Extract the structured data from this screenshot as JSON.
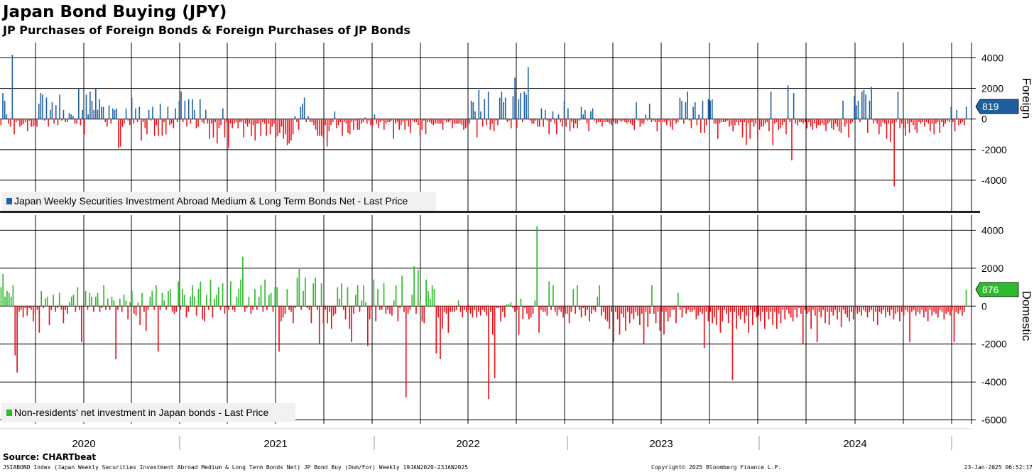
{
  "title": "Japan Bond Buying (JPY)",
  "subtitle": "JP Purchases of Foreign Bonds & Foreign Purchases of JP Bonds",
  "source": "Source: CHARTbeat",
  "footer": {
    "left": "JSIABOND Index (Japan Weekly Securities Investment Abroad Medium & Long Term Bonds Net) JP Bond Buy (Dom/For)  Weekly 19JAN2020-23JAN2025",
    "middle": "Copyright© 2025 Bloomberg Finance L.P.",
    "right": "23-Jan-2025 06:52:17"
  },
  "colors": {
    "positive_top": "#1f5fa0",
    "positive_bottom": "#2dbb2d",
    "negative": "#e8141c",
    "grid": "#000000"
  },
  "chart_data": [
    {
      "type": "bar",
      "panel": "top",
      "axis_title": "Foreign",
      "legend": "Japan Weekly Securities Investment Abroad Medium & Long Term Bonds Net - Last Price",
      "legend_placement": "bottom-left",
      "last_value_label": "819",
      "ylim": [
        -6000,
        5000
      ],
      "yticks": [
        4000,
        2000,
        0,
        -2000,
        -4000
      ],
      "ytick_labels": [
        "4000",
        "2000",
        "0",
        "-2000",
        "-4000"
      ],
      "grid": true,
      "x_start": "2020-01-19",
      "x_end": "2025-01-23",
      "frequency": "weekly",
      "values": [
        -400,
        1700,
        1200,
        300,
        -300,
        -500,
        4200,
        -1000,
        -200,
        -100,
        -500,
        -400,
        -300,
        -200,
        -800,
        -100,
        -500,
        -500,
        -400,
        -500,
        1000,
        1700,
        1600,
        -100,
        1400,
        -500,
        600,
        1100,
        -300,
        900,
        -400,
        1600,
        -100,
        600,
        -200,
        -200,
        400,
        300,
        200,
        -300,
        -300,
        2000,
        -400,
        600,
        -1000,
        1600,
        300,
        1800,
        1200,
        600,
        2000,
        600,
        1300,
        800,
        800,
        -200,
        -500,
        900,
        -300,
        700,
        600,
        700,
        -1900,
        -1800,
        -500,
        -300,
        700,
        -100,
        -400,
        1400,
        -300,
        700,
        -200,
        800,
        -1400,
        -200,
        -600,
        -1000,
        600,
        -100,
        800,
        -1100,
        -400,
        -1100,
        1000,
        -1100,
        -200,
        -1000,
        800,
        -400,
        -300,
        -600,
        700,
        -200,
        1200,
        1800,
        -200,
        1200,
        -500,
        1300,
        -300,
        1300,
        600,
        -600,
        -500,
        1300,
        -200,
        -300,
        600,
        -300,
        -1300,
        -300,
        -1200,
        -200,
        -1600,
        -600,
        -400,
        700,
        -1200,
        -200,
        -1900,
        -300,
        -600,
        -300,
        -200,
        -600,
        -200,
        -200,
        -1200,
        -300,
        -500,
        -300,
        -1100,
        -400,
        -1400,
        -300,
        -300,
        -1100,
        -200,
        -300,
        -1100,
        -300,
        -1000,
        -500,
        -300,
        -1200,
        -1100,
        -900,
        -500,
        -1300,
        -1000,
        -1700,
        -1600,
        -1400,
        -1000,
        200,
        -200,
        -700,
        800,
        1000,
        1400,
        -200,
        200,
        -200,
        -200,
        -400,
        -700,
        -1100,
        -1100,
        -1100,
        -1200,
        -400,
        -1800,
        -800,
        -400,
        -200,
        500,
        -600,
        -400,
        -200,
        -1100,
        -200,
        -300,
        -900,
        -1000,
        -200,
        -700,
        -100,
        -700,
        -700,
        -300,
        -200,
        100,
        -300,
        -100,
        -400,
        -400,
        300,
        -300,
        -600,
        -200,
        -100,
        -700,
        -300,
        -200,
        -200,
        -100,
        -1300,
        -300,
        -200,
        -700,
        -400,
        -200,
        -700,
        -100,
        -500,
        -900,
        -100,
        -200,
        -200,
        -400,
        -1100,
        -700,
        -100,
        -1000,
        -200,
        -200,
        -300,
        -400,
        -300,
        -300,
        -300,
        -300,
        -700,
        -100,
        -200,
        -200,
        -100,
        -600,
        -300,
        -300,
        -300,
        -300,
        -400,
        -700,
        -600,
        -500,
        -300,
        1200,
        1100,
        500,
        -1200,
        1900,
        500,
        -500,
        1300,
        -400,
        1800,
        -700,
        -300,
        -800,
        -100,
        -400,
        1400,
        1800,
        1100,
        1400,
        -200,
        -100,
        -600,
        1500,
        2700,
        -600,
        1300,
        1700,
        -200,
        1800,
        1600,
        3400,
        -100,
        -300,
        -300,
        -100,
        -500,
        -500,
        700,
        -500,
        600,
        -100,
        -1000,
        -200,
        500,
        -300,
        -1000,
        300,
        -200,
        -500,
        1200,
        -500,
        700,
        -800,
        -200,
        -600,
        -300,
        -600,
        -100,
        800,
        300,
        600,
        -300,
        -800,
        500,
        700,
        -100,
        -300,
        -200,
        -200,
        -500,
        -200,
        -200,
        -200,
        -300,
        -400,
        -200,
        -300,
        -300,
        -100,
        -200,
        -100,
        -200,
        -300,
        -200,
        -300,
        -400,
        -700,
        1100,
        -100,
        -500,
        -300,
        -300,
        300,
        -100,
        1000,
        -200,
        -100,
        -200,
        -800,
        -200,
        -300,
        -200,
        -200,
        -400,
        -100,
        -500,
        -700,
        -100,
        -300,
        -200,
        1400,
        1200,
        -300,
        1100,
        1800,
        -100,
        -600,
        800,
        1100,
        -400,
        300,
        -900,
        1200,
        -900,
        -400,
        1300,
        1200,
        1300,
        -300,
        -300,
        -1300,
        -300,
        -200,
        -200,
        -200,
        -100,
        -500,
        -400,
        -800,
        -400,
        -200,
        -400,
        -200,
        -1200,
        -200,
        -1700,
        -300,
        -1300,
        -200,
        -500,
        -300,
        -1300,
        -700,
        -500,
        -500,
        -300,
        -200,
        -800,
        1800,
        -1700,
        -300,
        -200,
        -700,
        -600,
        -400,
        -200,
        -1000,
        2200,
        -200,
        -2700,
        1700,
        -300,
        -400,
        -200,
        -200,
        -300,
        -200,
        -600,
        -200,
        -500,
        -700,
        -300,
        -600,
        -400,
        -400,
        -300,
        -400,
        -800,
        -300,
        -200,
        -600,
        -700,
        -300,
        -500,
        -800,
        -900,
        1200,
        -500,
        -300,
        -1200,
        -300,
        -200,
        1500,
        900,
        1200,
        -200,
        1800,
        1900,
        1600,
        -900,
        1200,
        2100,
        -300,
        -100,
        -300,
        -1000,
        -500,
        -200,
        -300,
        -1300,
        -300,
        -1500,
        -300,
        -4400,
        -200,
        1800,
        -600,
        -300,
        -600,
        -1100,
        -300,
        -900,
        -200,
        -400,
        -700,
        -900,
        -200,
        -300,
        -200,
        -500,
        -200,
        -300,
        -800,
        -300,
        -1000,
        -300,
        -200,
        -900,
        -200,
        -500,
        -300,
        -100,
        -200,
        800,
        -200,
        -800,
        600,
        -400,
        -300,
        -200,
        -400,
        819
      ]
    },
    {
      "type": "bar",
      "panel": "bottom",
      "axis_title": "Domestic",
      "legend": "Non-residents' net investment in Japan bonds - Last Price",
      "legend_placement": "bottom-left",
      "last_value_label": "876",
      "ylim": [
        -6200,
        4800
      ],
      "yticks": [
        4000,
        2000,
        0,
        -2000,
        -4000,
        -6000
      ],
      "ytick_labels": [
        "4000",
        "2000",
        "0",
        "-2000",
        "-4000",
        "-6000"
      ],
      "grid": true,
      "x_start": "2020-01-19",
      "x_end": "2025-01-23",
      "frequency": "weekly",
      "categories_label_note": "",
      "xtick_labels": [
        "2020",
        "2021",
        "2022",
        "2023",
        "2024"
      ],
      "values": [
        1000,
        1700,
        500,
        800,
        700,
        500,
        1100,
        -2600,
        -3500,
        -300,
        -200,
        -600,
        -100,
        -500,
        -100,
        -200,
        -800,
        -400,
        -200,
        -1400,
        800,
        -100,
        400,
        500,
        -1000,
        -200,
        600,
        -300,
        -100,
        700,
        -200,
        -900,
        -200,
        -400,
        200,
        500,
        600,
        -300,
        1000,
        -200,
        -1900,
        -100,
        800,
        -200,
        700,
        500,
        -300,
        500,
        700,
        -300,
        -100,
        1100,
        -200,
        400,
        -200,
        500,
        300,
        -2800,
        -200,
        400,
        -300,
        600,
        300,
        -700,
        200,
        800,
        -400,
        -500,
        200,
        -1000,
        700,
        -300,
        -1300,
        -200,
        500,
        800,
        -200,
        1100,
        -2400,
        -200,
        700,
        300,
        -200,
        800,
        900,
        -300,
        -400,
        -300,
        1300,
        -200,
        900,
        600,
        -600,
        -300,
        500,
        1100,
        500,
        -500,
        900,
        1300,
        -700,
        -800,
        600,
        -200,
        1400,
        -600,
        400,
        600,
        1000,
        -200,
        1200,
        -400,
        -100,
        -200,
        1300,
        -200,
        -300,
        500,
        900,
        1400,
        2600,
        -300,
        -100,
        500,
        -400,
        -200,
        900,
        -200,
        500,
        1100,
        -300,
        1400,
        -200,
        600,
        700,
        -300,
        1000,
        1000,
        -2400,
        -800,
        -600,
        -400,
        900,
        -200,
        -300,
        -900,
        -100,
        1500,
        2000,
        -200,
        800,
        1500,
        -100,
        -200,
        -900,
        1200,
        1500,
        -200,
        -2000,
        1200,
        -900,
        -200,
        -900,
        -300,
        -1200,
        -500,
        -400,
        1000,
        400,
        1200,
        -200,
        -700,
        1000,
        -1200,
        -1900,
        -400,
        600,
        1100,
        -300,
        300,
        1100,
        200,
        -2100,
        -700,
        -200,
        1400,
        -800,
        900,
        -200,
        -200,
        1200,
        -400,
        -200,
        -400,
        -500,
        300,
        1100,
        -800,
        -100,
        1600,
        -300,
        -4800,
        -400,
        -200,
        600,
        2100,
        -400,
        1900,
        300,
        -800,
        -900,
        1400,
        800,
        400,
        1100,
        900,
        -2500,
        -600,
        -2800,
        -1200,
        -300,
        -400,
        -1400,
        -300,
        -300,
        -300,
        -200,
        300,
        -300,
        -600,
        -200,
        -300,
        -200,
        -400,
        -600,
        -200,
        -600,
        -300,
        -500,
        -200,
        -300,
        -500,
        -4900,
        -300,
        -1500,
        -3800,
        -100,
        -100,
        -800,
        -300,
        -600,
        100,
        100,
        200,
        -100,
        -300,
        -200,
        -1500,
        400,
        -700,
        -100,
        -400,
        -700,
        -600,
        -400,
        300,
        4200,
        -1400,
        -200,
        -300,
        -300,
        -500,
        1300,
        -200,
        1100,
        -300,
        -500,
        -200,
        -300,
        -600,
        -400,
        -400,
        -900,
        -300,
        900,
        -400,
        1100,
        -200,
        -600,
        -100,
        -500,
        -200,
        -800,
        -400,
        -200,
        -300,
        500,
        1100,
        -500,
        -300,
        -700,
        -800,
        -1200,
        -300,
        -1900,
        -300,
        -700,
        -1500,
        -400,
        -600,
        -1300,
        -300,
        -900,
        -400,
        -700,
        -300,
        -500,
        -1000,
        -400,
        -2000,
        -300,
        -1100,
        -400,
        1100,
        -400,
        -900,
        -300,
        -1300,
        -300,
        -1500,
        -300,
        -800,
        -600,
        -200,
        -200,
        -900,
        700,
        -200,
        -600,
        -100,
        -400,
        -200,
        -300,
        -300,
        -200,
        -700,
        -500,
        -300,
        -400,
        -2200,
        -300,
        -800,
        -300,
        -900,
        -600,
        -1000,
        -200,
        -1400,
        -800,
        -200,
        -400,
        -900,
        -300,
        -3900,
        -300,
        -1200,
        -500,
        -700,
        -300,
        -900,
        -500,
        -1400,
        -200,
        -1000,
        -300,
        -600,
        -500,
        -800,
        -300,
        -1200,
        -300,
        -700,
        -300,
        -1000,
        -300,
        -1200,
        -400,
        -900,
        -200,
        -700,
        -200,
        -400,
        -600,
        -800,
        -200,
        -600,
        -100,
        -400,
        -2000,
        -200,
        -400,
        -300,
        -1200,
        -200,
        -500,
        -1900,
        -300,
        -600,
        -200,
        -900,
        -300,
        -1000,
        -300,
        -500,
        -200,
        -700,
        -300,
        -1100,
        -200,
        -400,
        -600,
        -800,
        -300,
        -700,
        -200,
        -400,
        -300,
        -500,
        -200,
        -300,
        -600,
        -300,
        -200,
        -800,
        -300,
        -1000,
        -300,
        -400,
        -200,
        -600,
        -300,
        -500,
        -200,
        -700,
        -400,
        -300,
        -800,
        -300,
        -500,
        -200,
        -300,
        -1900,
        -300,
        -200,
        -500,
        -300,
        -400,
        -200,
        -600,
        -300,
        -800,
        -200,
        -500,
        -300,
        -400,
        -600,
        -200,
        -300,
        -700,
        -400,
        -300,
        -500,
        -200,
        -1900,
        -300,
        -400,
        -200,
        -500,
        -300,
        876
      ]
    }
  ]
}
